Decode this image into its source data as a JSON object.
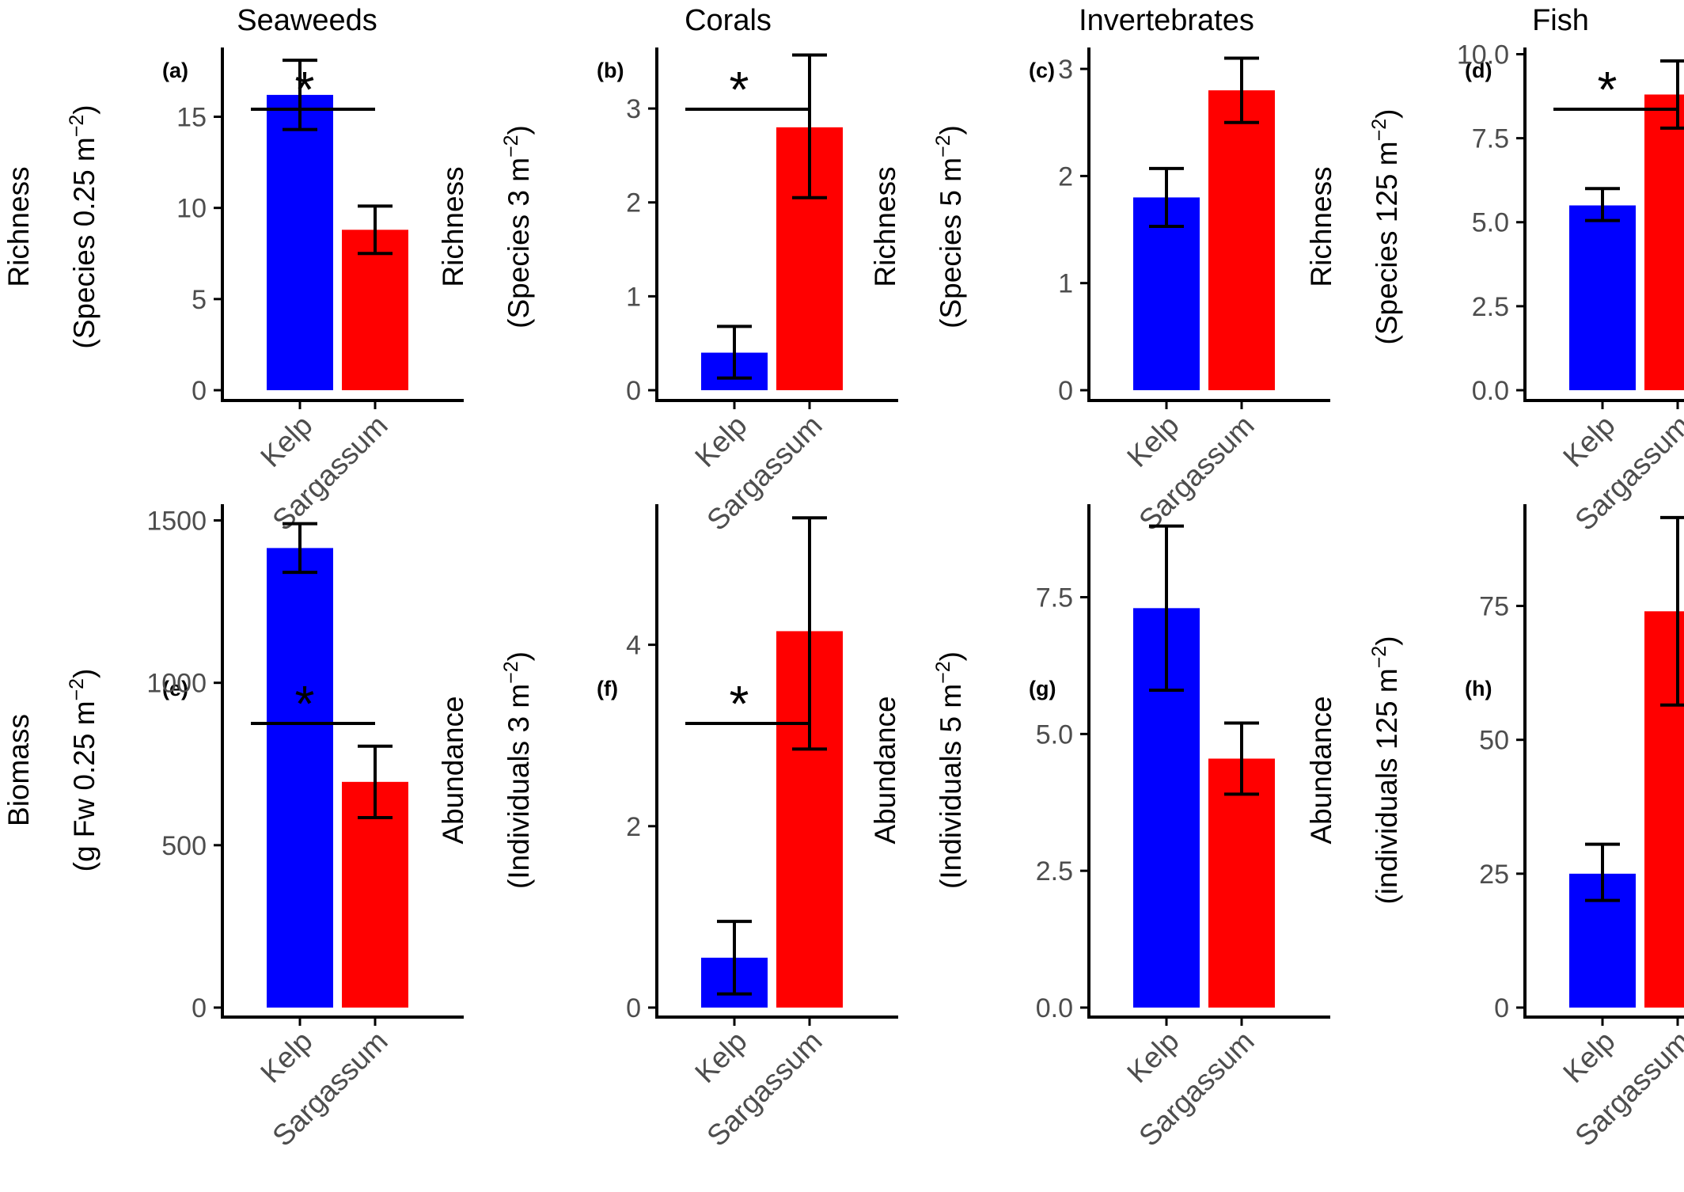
{
  "columns": [
    "Seaweeds",
    "Corals",
    "Invertebrates",
    "Fish"
  ],
  "colors": {
    "Kelp": "#0000FF",
    "Sargassum": "#FF0000",
    "axis": "#000000",
    "tick_text": "#4d4d4d"
  },
  "chart_data": [
    {
      "type": "bar",
      "panel": "(a)",
      "column": "Seaweeds",
      "categories": [
        "Kelp",
        "Sargassum"
      ],
      "values": [
        16.2,
        8.8
      ],
      "error_low": [
        14.3,
        7.5
      ],
      "error_high": [
        18.1,
        10.1
      ],
      "ylabel_line1": "Richness",
      "ylabel_line2": "(Species 0.25 m⁻²)",
      "yticks": [
        "0",
        "5",
        "10",
        "15"
      ],
      "ytick_values": [
        0,
        5,
        10,
        15
      ],
      "ylim": [
        0,
        18.8
      ],
      "significance": "*"
    },
    {
      "type": "bar",
      "panel": "(b)",
      "column": "Corals",
      "categories": [
        "Kelp",
        "Sargassum"
      ],
      "values": [
        0.4,
        2.8
      ],
      "error_low": [
        0.13,
        2.05
      ],
      "error_high": [
        0.68,
        3.57
      ],
      "ylabel_line1": "Richness",
      "ylabel_line2": "(Species 3 m⁻²)",
      "yticks": [
        "0",
        "1",
        "2",
        "3"
      ],
      "ytick_values": [
        0,
        1,
        2,
        3
      ],
      "ylim": [
        0,
        3.65
      ],
      "significance": "*"
    },
    {
      "type": "bar",
      "panel": "(c)",
      "column": "Invertebrates",
      "categories": [
        "Kelp",
        "Sargassum"
      ],
      "values": [
        1.8,
        2.8
      ],
      "error_low": [
        1.53,
        2.5
      ],
      "error_high": [
        2.07,
        3.1
      ],
      "ylabel_line1": "Richness",
      "ylabel_line2": "(Species 5 m⁻²)",
      "yticks": [
        "0",
        "1",
        "2",
        "3"
      ],
      "ytick_values": [
        0,
        1,
        2,
        3
      ],
      "ylim": [
        0,
        3.2
      ],
      "significance": ""
    },
    {
      "type": "bar",
      "panel": "(d)",
      "column": "Fish",
      "categories": [
        "Kelp",
        "Sargassum"
      ],
      "values": [
        5.5,
        8.8
      ],
      "error_low": [
        5.05,
        7.8
      ],
      "error_high": [
        6.0,
        9.8
      ],
      "ylabel_line1": "Richness",
      "ylabel_line2": "(Species 125 m⁻²)",
      "yticks": [
        "0.0",
        "2.5",
        "5.0",
        "7.5",
        "10.0"
      ],
      "ytick_values": [
        0,
        2.5,
        5,
        7.5,
        10
      ],
      "ylim": [
        0,
        10.2
      ],
      "significance": "*"
    },
    {
      "type": "bar",
      "panel": "(e)",
      "column": "Seaweeds",
      "categories": [
        "Kelp",
        "Sargassum"
      ],
      "values": [
        1415,
        695
      ],
      "error_low": [
        1340,
        585
      ],
      "error_high": [
        1490,
        805
      ],
      "ylabel_line1": "Biomass",
      "ylabel_line2": "(g Fw 0.25 m⁻²)",
      "yticks": [
        "0",
        "500",
        "1000",
        "1500"
      ],
      "ytick_values": [
        0,
        500,
        1000,
        1500
      ],
      "ylim": [
        0,
        1550
      ],
      "significance": "*"
    },
    {
      "type": "bar",
      "panel": "(f)",
      "column": "Corals",
      "categories": [
        "Kelp",
        "Sargassum"
      ],
      "values": [
        0.55,
        4.15
      ],
      "error_low": [
        0.15,
        2.85
      ],
      "error_high": [
        0.95,
        5.4
      ],
      "ylabel_line1": "Abundance",
      "ylabel_line2": "(Individuals 3 m⁻²)",
      "yticks": [
        "0",
        "2",
        "4"
      ],
      "ytick_values": [
        0,
        2,
        4
      ],
      "ylim": [
        0,
        5.55
      ],
      "significance": "*"
    },
    {
      "type": "bar",
      "panel": "(g)",
      "column": "Invertebrates",
      "categories": [
        "Kelp",
        "Sargassum"
      ],
      "values": [
        7.3,
        4.55
      ],
      "error_low": [
        5.8,
        3.9
      ],
      "error_high": [
        8.8,
        5.2
      ],
      "ylabel_line1": "Abundance",
      "ylabel_line2": "(Individuals 5 m⁻²)",
      "yticks": [
        "0.0",
        "2.5",
        "5.0",
        "7.5"
      ],
      "ytick_values": [
        0,
        2.5,
        5,
        7.5
      ],
      "ylim": [
        0,
        9.2
      ],
      "significance": ""
    },
    {
      "type": "bar",
      "panel": "(h)",
      "column": "Fish",
      "categories": [
        "Kelp",
        "Sargassum"
      ],
      "values": [
        25,
        74
      ],
      "error_low": [
        20,
        56.5
      ],
      "error_high": [
        30.5,
        91.5
      ],
      "ylabel_line1": "Abundance",
      "ylabel_line2": "(individuals 125 m⁻²)",
      "yticks": [
        "0",
        "25",
        "50",
        "75"
      ],
      "ytick_values": [
        0,
        25,
        50,
        75
      ],
      "ylim": [
        0,
        94
      ],
      "significance": ""
    }
  ]
}
